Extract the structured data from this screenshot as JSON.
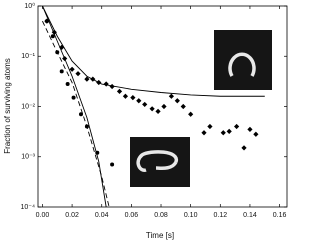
{
  "chart_data": {
    "type": "scatter",
    "xlabel": "Time [s]",
    "ylabel": "Fraction of surviving atoms",
    "xlim": [
      -0.003,
      0.165
    ],
    "ylim": [
      0.0001,
      1
    ],
    "log_y": true,
    "xticks": [
      {
        "value": 0,
        "label": "0.00"
      },
      {
        "value": 0.02,
        "label": "0.02"
      },
      {
        "value": 0.04,
        "label": "0.04"
      },
      {
        "value": 0.06,
        "label": "0.06"
      },
      {
        "value": 0.08,
        "label": "0.08"
      },
      {
        "value": 0.1,
        "label": "0.10"
      },
      {
        "value": 0.12,
        "label": "0.12"
      },
      {
        "value": 0.14,
        "label": "0.14"
      },
      {
        "value": 0.16,
        "label": "0.16"
      }
    ],
    "yticks": [
      {
        "value": 0.0001,
        "label": "10⁻⁴"
      },
      {
        "value": 0.001,
        "label": "10⁻³"
      },
      {
        "value": 0.01,
        "label": "10⁻²"
      },
      {
        "value": 0.1,
        "label": "10⁻¹"
      },
      {
        "value": 1,
        "label": "10⁰"
      }
    ],
    "series": [
      {
        "marker": "diamond",
        "color": "#000000",
        "x": [
          0.003,
          0.008,
          0.013,
          0.015,
          0.02,
          0.024,
          0.03,
          0.034,
          0.038,
          0.043,
          0.047,
          0.052,
          0.056,
          0.061,
          0.065,
          0.069,
          0.074,
          0.078,
          0.082,
          0.087,
          0.091,
          0.095,
          0.1,
          0.109,
          0.113,
          0.122,
          0.126,
          0.131,
          0.136,
          0.14,
          0.144
        ],
        "values": [
          0.5,
          0.3,
          0.15,
          0.09,
          0.055,
          0.045,
          0.035,
          0.035,
          0.03,
          0.028,
          0.025,
          0.02,
          0.016,
          0.015,
          0.013,
          0.011,
          0.009,
          0.008,
          0.01,
          0.016,
          0.013,
          0.01,
          0.007,
          0.003,
          0.004,
          0.003,
          0.0032,
          0.004,
          0.0015,
          0.0035,
          0.0028
        ]
      },
      {
        "marker": "circle",
        "color": "#000000",
        "x": [
          0.003,
          0.007,
          0.01,
          0.013,
          0.017,
          0.021,
          0.026,
          0.03,
          0.037,
          0.047
        ],
        "values": [
          0.5,
          0.25,
          0.12,
          0.05,
          0.028,
          0.015,
          0.007,
          0.004,
          0.0012,
          0.0007
        ]
      },
      {
        "marker": "line",
        "color": "#000000",
        "x": [
          0,
          0.01,
          0.02,
          0.03,
          0.04,
          0.06,
          0.08,
          0.1,
          0.12,
          0.15
        ],
        "values": [
          1,
          0.25,
          0.08,
          0.04,
          0.028,
          0.022,
          0.019,
          0.017,
          0.016,
          0.016
        ]
      },
      {
        "marker": "line",
        "color": "#000000",
        "x": [
          0,
          0.01,
          0.02,
          0.03,
          0.038,
          0.043
        ],
        "values": [
          1,
          0.2,
          0.04,
          0.006,
          0.0008,
          0.0001
        ]
      },
      {
        "marker": "dashed",
        "color": "#000000",
        "x": [
          0,
          0.01,
          0.02,
          0.03,
          0.04,
          0.045
        ],
        "values": [
          0.5,
          0.12,
          0.03,
          0.004,
          0.0004,
          0.0001
        ]
      }
    ]
  }
}
